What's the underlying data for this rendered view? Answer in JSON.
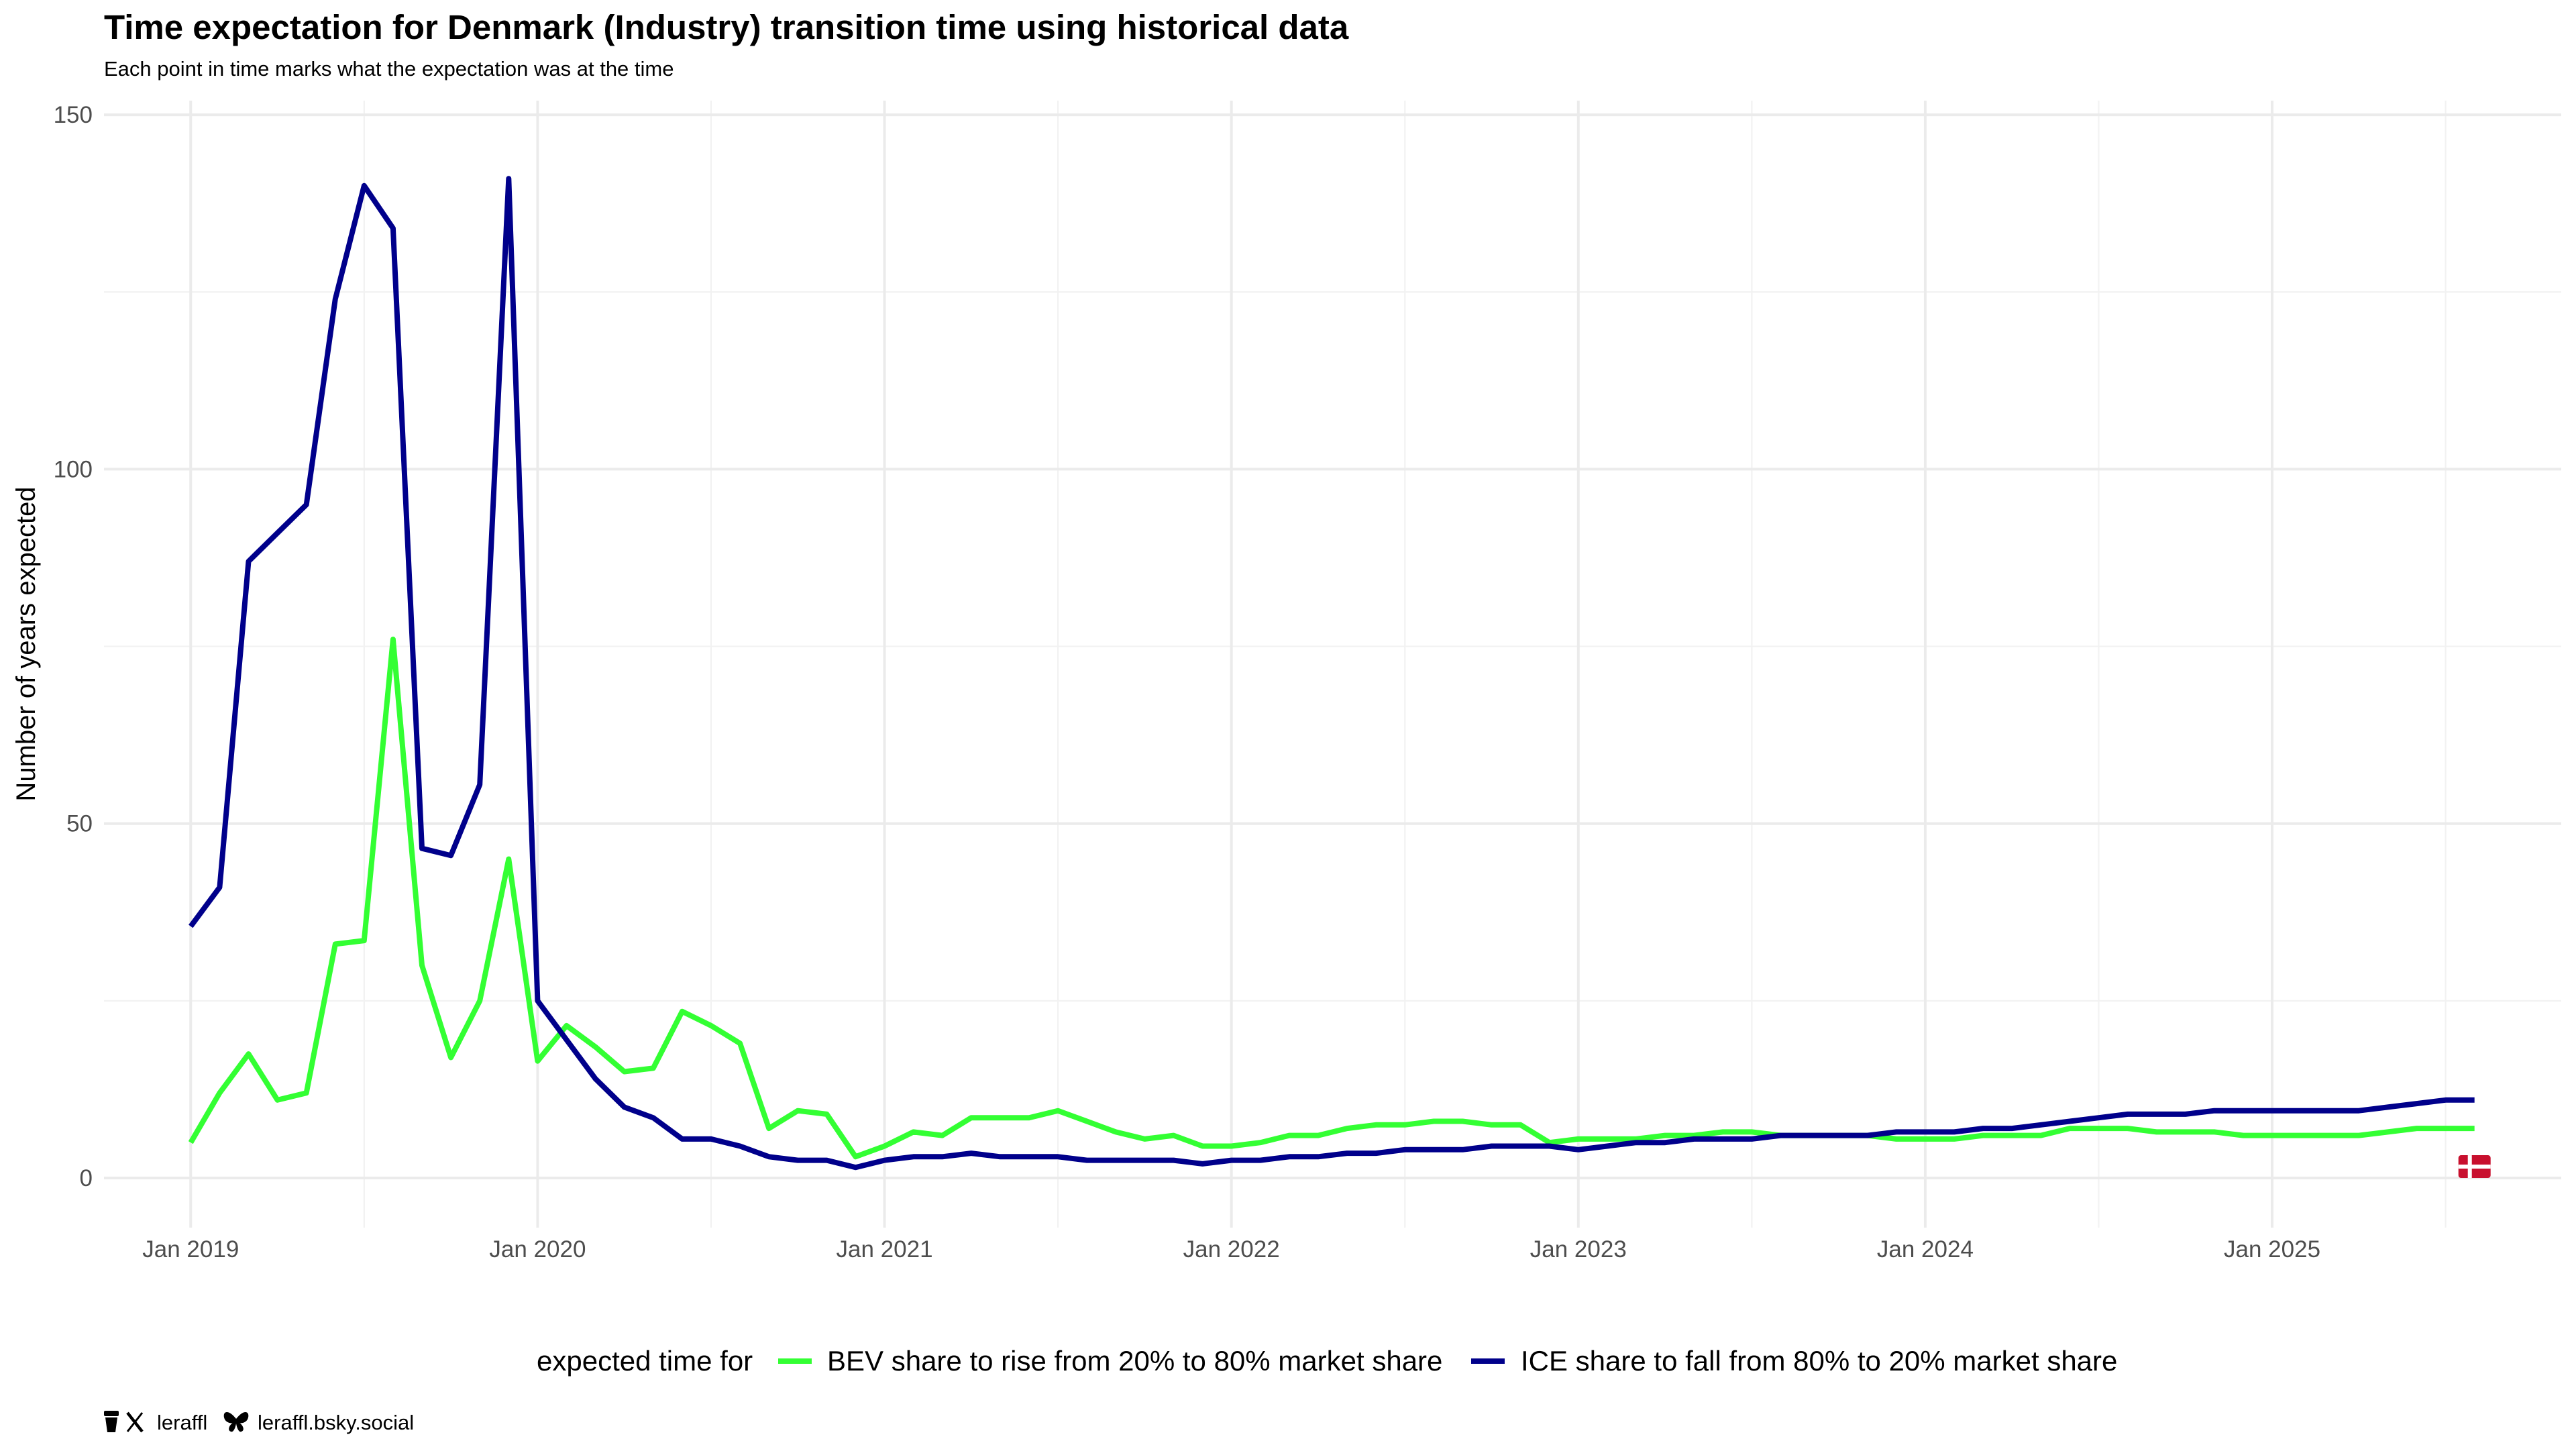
{
  "chart_data": {
    "type": "line",
    "title": "Time expectation for Denmark (Industry) transition time using historical data",
    "subtitle": "Each point in time marks what the expectation was at the time",
    "xlabel": "",
    "ylabel": "Number of years expected",
    "x_start": "2019-01",
    "xlim": [
      "2018-10",
      "2025-11"
    ],
    "ylim": [
      -7,
      152
    ],
    "y_ticks": [
      0,
      50,
      100,
      150
    ],
    "x_ticks": [
      {
        "date": "2019-01",
        "label": "Jan 2019"
      },
      {
        "date": "2020-01",
        "label": "Jan 2020"
      },
      {
        "date": "2021-01",
        "label": "Jan 2021"
      },
      {
        "date": "2022-01",
        "label": "Jan 2022"
      },
      {
        "date": "2023-01",
        "label": "Jan 2023"
      },
      {
        "date": "2024-01",
        "label": "Jan 2024"
      },
      {
        "date": "2025-01",
        "label": "Jan 2025"
      }
    ],
    "grid": true,
    "legend_position": "bottom",
    "legend_title": "expected time for",
    "series": [
      {
        "name": "BEV share to rise from 20% to 80% market share",
        "color": "#33ff33",
        "values": [
          5,
          12,
          17.5,
          11,
          12,
          33,
          33.5,
          76,
          30,
          17,
          25,
          45,
          16.5,
          21.5,
          18.5,
          15,
          15.5,
          23.5,
          21.5,
          19,
          7,
          9.5,
          9,
          3,
          4.5,
          6.5,
          6,
          8.5,
          8.5,
          8.5,
          9.5,
          8,
          6.5,
          5.5,
          6,
          4.5,
          4.5,
          5,
          6,
          6,
          7,
          7.5,
          7.5,
          8,
          8,
          7.5,
          7.5,
          5,
          5.5,
          5.5,
          5.5,
          6,
          6,
          6.5,
          6.5,
          6,
          6,
          6,
          6,
          5.5,
          5.5,
          5.5,
          6,
          6,
          6,
          7,
          7,
          7,
          6.5,
          6.5,
          6.5,
          6,
          6,
          6,
          6,
          6,
          6.5,
          7,
          7,
          7
        ]
      },
      {
        "name": "ICE share to fall from 80% to 20% market share",
        "color": "#00008b",
        "values": [
          35.5,
          41,
          87,
          91,
          95,
          124,
          140,
          134,
          46.5,
          45.5,
          55.5,
          141,
          25,
          19.5,
          14,
          10,
          8.5,
          5.5,
          5.5,
          4.5,
          3,
          2.5,
          2.5,
          1.5,
          2.5,
          3,
          3,
          3.5,
          3,
          3,
          3,
          2.5,
          2.5,
          2.5,
          2.5,
          2,
          2.5,
          2.5,
          3,
          3,
          3.5,
          3.5,
          4,
          4,
          4,
          4.5,
          4.5,
          4.5,
          4,
          4.5,
          5,
          5,
          5.5,
          5.5,
          5.5,
          6,
          6,
          6,
          6,
          6.5,
          6.5,
          6.5,
          7,
          7,
          7.5,
          8,
          8.5,
          9,
          9,
          9,
          9.5,
          9.5,
          9.5,
          9.5,
          9.5,
          9.5,
          10,
          10.5,
          11,
          11
        ]
      }
    ]
  },
  "flag": {
    "name": "denmark-flag-icon",
    "red": "#c8102e",
    "white": "#ffffff"
  },
  "credits": {
    "x_handle": "leraffl",
    "bsky_handle": "leraffl.bsky.social"
  }
}
